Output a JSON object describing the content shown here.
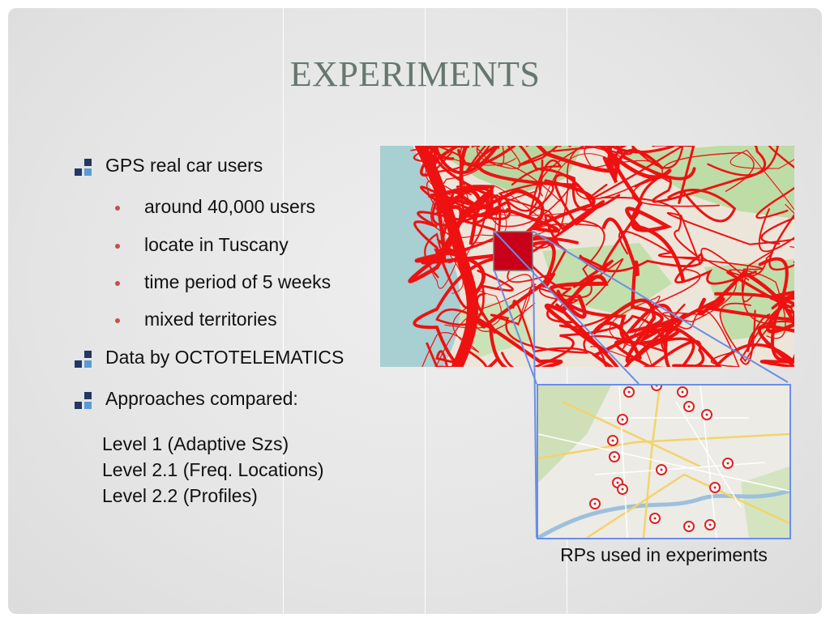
{
  "slide": {
    "title": "EXPERIMENTS",
    "bullets": [
      {
        "text": "GPS real car users",
        "sub": [
          "around 40,000 users",
          "locate in Tuscany",
          "time period of 5 weeks",
          "mixed territories"
        ]
      },
      {
        "text": "Data by OCTOTELEMATICS"
      },
      {
        "text": "Approaches compared:"
      }
    ],
    "levels": [
      "Level 1 (Adaptive Szs)",
      "Level 2.1 (Freq. Locations)",
      "Level 2.2 (Profiles)"
    ],
    "caption": "RPs used in experiments"
  },
  "colors": {
    "title": "#65786e",
    "bullet_dark": "#1f3864",
    "bullet_light": "#5b9bd5",
    "sub_dot": "#c0504d",
    "traffic": "#ee1111",
    "zoom_lines": "#6a8ee6",
    "sea": "#a8cfd2"
  },
  "icons": [
    "square-bullet-icon",
    "round-bullet-icon",
    "map-pin-icon"
  ]
}
